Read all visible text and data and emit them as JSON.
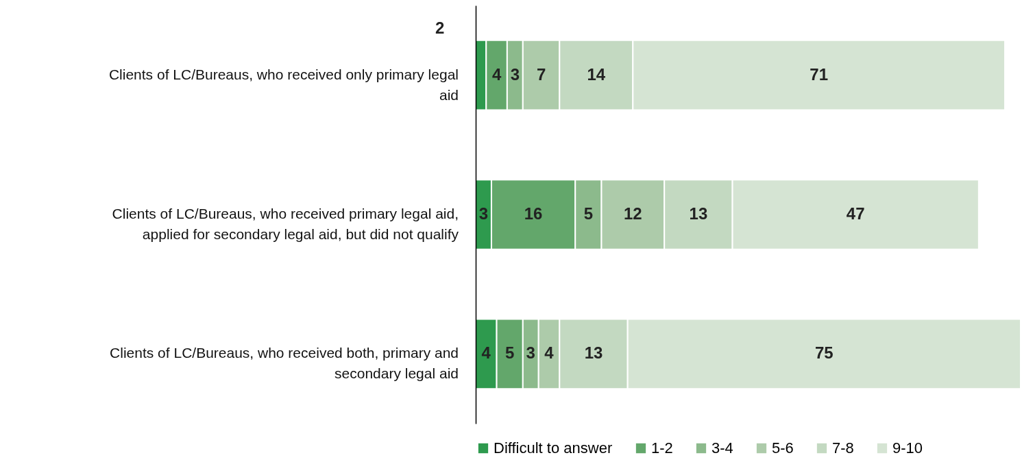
{
  "chart_data": {
    "type": "bar",
    "orientation": "horizontal",
    "stacked": true,
    "data_labels": true,
    "legend": "bottom",
    "grid": false,
    "categories": [
      "Clients of LC/Bureaus, who received only primary legal aid",
      "Clients of LC/Bureaus, who received primary legal aid, applied for secondary legal aid, but did not qualify",
      "Clients of LC/Bureaus, who received both, primary and secondary legal aid"
    ],
    "series": [
      {
        "name": "Difficult to answer",
        "color": "#2e9a4e",
        "values": [
          2,
          3,
          4
        ]
      },
      {
        "name": "1-2",
        "color": "#63a76b",
        "values": [
          4,
          16,
          5
        ]
      },
      {
        "name": "3-4",
        "color": "#8cba8c",
        "values": [
          3,
          5,
          3
        ]
      },
      {
        "name": "5-6",
        "color": "#adcbaa",
        "values": [
          7,
          12,
          4
        ]
      },
      {
        "name": "7-8",
        "color": "#c3d9c1",
        "values": [
          14,
          13,
          13
        ]
      },
      {
        "name": "9-10",
        "color": "#d5e4d3",
        "values": [
          71,
          47,
          75
        ]
      }
    ]
  }
}
